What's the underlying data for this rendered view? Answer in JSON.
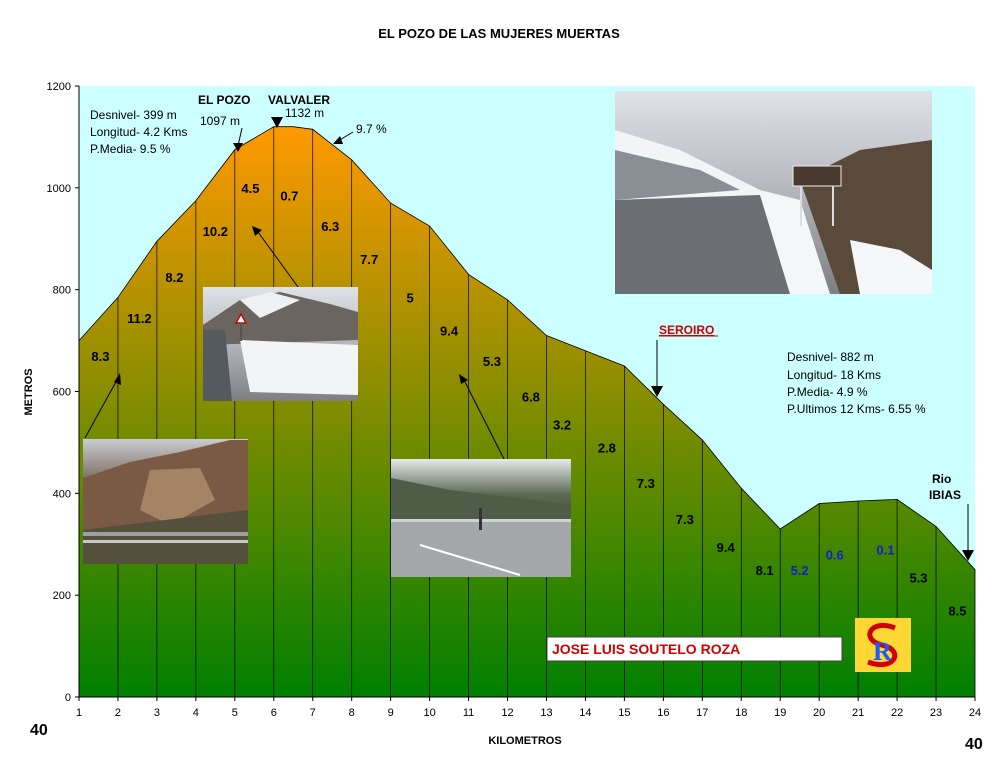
{
  "chart_data": {
    "type": "area",
    "title": "EL POZO DE LAS MUJERES MUERTAS",
    "xlabel": "KILOMETROS",
    "ylabel": "METROS",
    "xlim": [
      1,
      24
    ],
    "ylim": [
      0,
      1200
    ],
    "x_ticks": [
      1,
      2,
      3,
      4,
      5,
      6,
      7,
      8,
      9,
      10,
      11,
      12,
      13,
      14,
      15,
      16,
      17,
      18,
      19,
      20,
      21,
      22,
      23,
      24
    ],
    "y_ticks": [
      0,
      200,
      400,
      600,
      800,
      1000,
      1200
    ],
    "grid": false,
    "points": [
      {
        "x": 1,
        "y": 700
      },
      {
        "x": 2,
        "y": 785
      },
      {
        "x": 3,
        "y": 895
      },
      {
        "x": 4,
        "y": 975
      },
      {
        "x": 5,
        "y": 1075
      },
      {
        "x": 6,
        "y": 1120
      },
      {
        "x": 6.5,
        "y": 1120
      },
      {
        "x": 7,
        "y": 1115
      },
      {
        "x": 8,
        "y": 1055
      },
      {
        "x": 9,
        "y": 970
      },
      {
        "x": 10,
        "y": 925
      },
      {
        "x": 11,
        "y": 830
      },
      {
        "x": 12,
        "y": 780
      },
      {
        "x": 13,
        "y": 710
      },
      {
        "x": 14,
        "y": 680
      },
      {
        "x": 15,
        "y": 650
      },
      {
        "x": 16,
        "y": 575
      },
      {
        "x": 17,
        "y": 505
      },
      {
        "x": 18,
        "y": 410
      },
      {
        "x": 19,
        "y": 330
      },
      {
        "x": 20,
        "y": 380
      },
      {
        "x": 21,
        "y": 385
      },
      {
        "x": 22,
        "y": 388
      },
      {
        "x": 23,
        "y": 335
      },
      {
        "x": 24,
        "y": 250
      }
    ],
    "segment_grades": [
      {
        "x": 1.55,
        "y": 660,
        "label": "8.3",
        "color": "#000000"
      },
      {
        "x": 2.55,
        "y": 735,
        "label": "11.2",
        "color": "#000000"
      },
      {
        "x": 3.45,
        "y": 815,
        "label": "8.2",
        "color": "#000000"
      },
      {
        "x": 4.5,
        "y": 905,
        "label": "10.2",
        "color": "#000000"
      },
      {
        "x": 5.4,
        "y": 990,
        "label": "4.5",
        "color": "#000000"
      },
      {
        "x": 6.4,
        "y": 975,
        "label": "0.7",
        "color": "#000000"
      },
      {
        "x": 7.45,
        "y": 915,
        "label": "6.3",
        "color": "#000000"
      },
      {
        "x": 8.45,
        "y": 850,
        "label": "7.7",
        "color": "#000000"
      },
      {
        "x": 9.5,
        "y": 775,
        "label": "5",
        "color": "#000000"
      },
      {
        "x": 10.5,
        "y": 710,
        "label": "9.4",
        "color": "#000000"
      },
      {
        "x": 11.6,
        "y": 650,
        "label": "5.3",
        "color": "#000000"
      },
      {
        "x": 12.6,
        "y": 580,
        "label": "6.8",
        "color": "#000000"
      },
      {
        "x": 13.4,
        "y": 525,
        "label": "3.2",
        "color": "#000000"
      },
      {
        "x": 14.55,
        "y": 480,
        "label": "2.8",
        "color": "#000000"
      },
      {
        "x": 15.55,
        "y": 410,
        "label": "7.3",
        "color": "#000000"
      },
      {
        "x": 16.55,
        "y": 340,
        "label": "7.3",
        "color": "#000000"
      },
      {
        "x": 17.6,
        "y": 285,
        "label": "9.4",
        "color": "#000000"
      },
      {
        "x": 18.6,
        "y": 240,
        "label": "8.1",
        "color": "#000000"
      },
      {
        "x": 19.5,
        "y": 240,
        "label": "5.2",
        "color": "#1a1acc"
      },
      {
        "x": 20.4,
        "y": 270,
        "label": "0.6",
        "color": "#1a1acc"
      },
      {
        "x": 21.7,
        "y": 280,
        "label": "0.1",
        "color": "#1a1acc"
      },
      {
        "x": 22.55,
        "y": 225,
        "label": "5.3",
        "color": "#000000"
      },
      {
        "x": 23.55,
        "y": 160,
        "label": "8.5",
        "color": "#000000"
      }
    ],
    "annotations": {
      "left_stats": [
        "Desnivel- 399 m",
        "Longitud- 4.2 Kms",
        "P.Media- 9.5 %"
      ],
      "right_stats": [
        "Desnivel- 882 m",
        "Longitud- 18 Kms",
        "P.Media- 4.9 %",
        "P.Ultimos 12 Kms- 6.55 %"
      ],
      "el_pozo": "EL POZO",
      "el_pozo_alt": "1097 m",
      "valvaler": "VALVALER",
      "valvaler_alt": "1132 m",
      "max_grade": "9.7 %",
      "seroiro": "SEROIRO",
      "rio_1": "Rio",
      "rio_2": "IBIAS",
      "corner_left": "40",
      "corner_right": "40",
      "author": "JOSE LUIS SOUTELO ROZA",
      "logo_letter": "R"
    },
    "colors": {
      "sky": "#ccffff",
      "fill_top": "#ff9900",
      "fill_bottom": "#008000",
      "author_text": "#d00000",
      "seroiro_text": "#cc0000",
      "logo_bg": "#ffd633"
    }
  }
}
